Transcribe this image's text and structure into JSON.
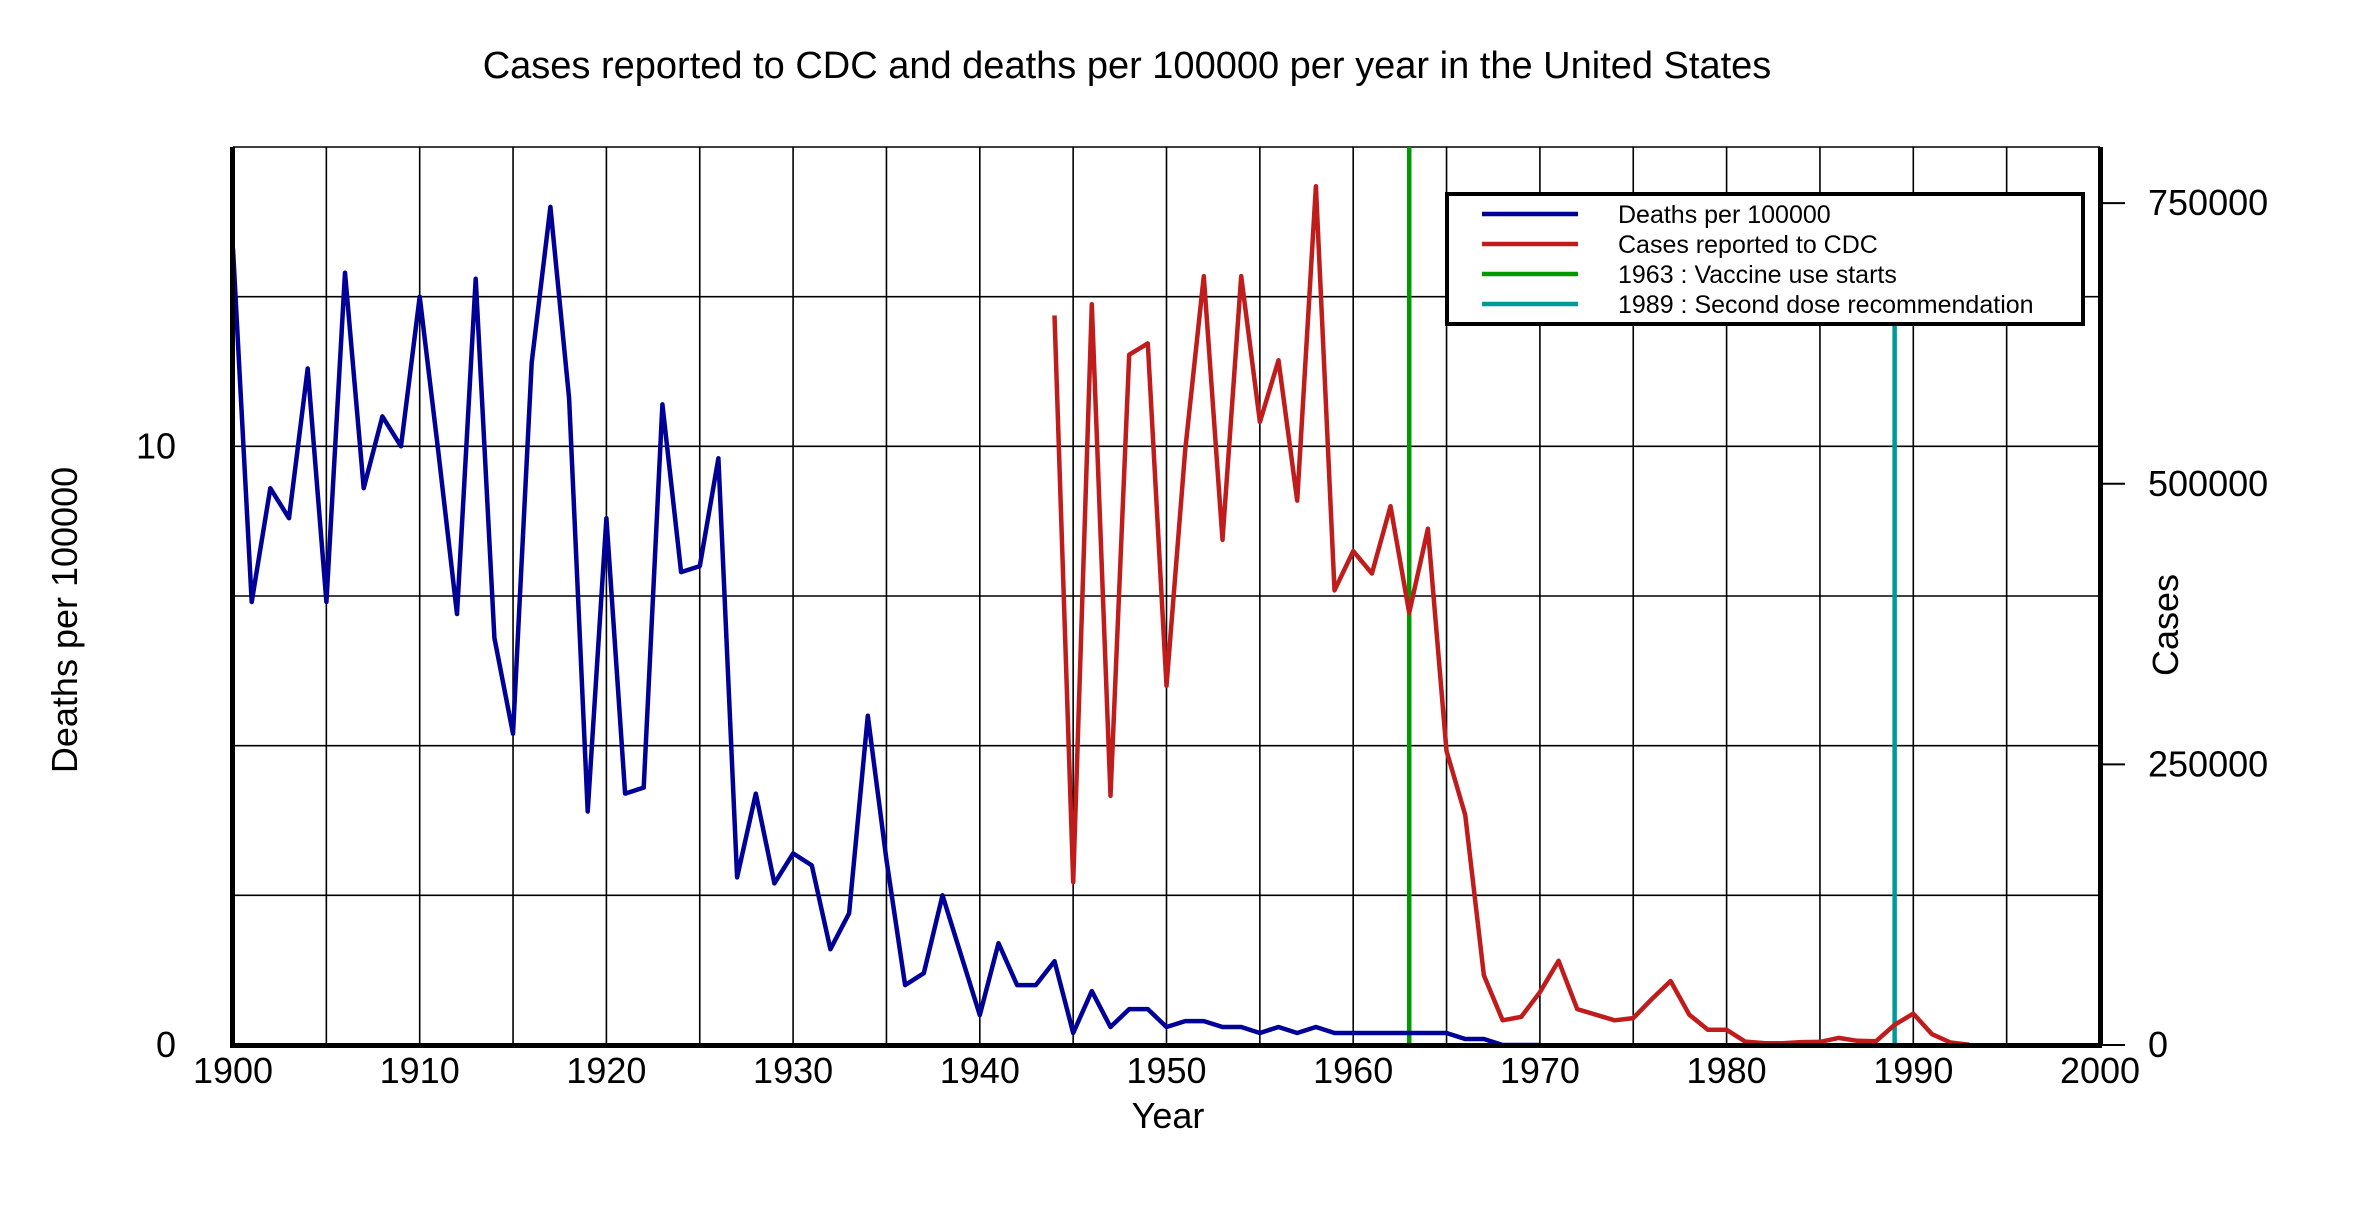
{
  "chart_data": {
    "type": "line",
    "title": "Cases reported to CDC and deaths per 100000 per year in the United States",
    "xlabel": "Year",
    "ylabel_left": "Deaths per 100000",
    "ylabel_right": "Cases",
    "xlim": [
      1900,
      2000
    ],
    "ylim_left": [
      0,
      15
    ],
    "ylim_right": [
      0,
      800000
    ],
    "x_ticks": [
      "1900",
      "1910",
      "1920",
      "1930",
      "1940",
      "1950",
      "1960",
      "1970",
      "1980",
      "1990",
      "2000"
    ],
    "y_ticks_left": [
      {
        "value": 0,
        "label": "0"
      },
      {
        "value": 10,
        "label": "10"
      }
    ],
    "y_ticks_right": [
      {
        "value": 0,
        "label": "0"
      },
      {
        "value": 250000,
        "label": "250000"
      },
      {
        "value": 500000,
        "label": "500000"
      },
      {
        "value": 750000,
        "label": "750000"
      }
    ],
    "grid": true,
    "legend_position": "top-right",
    "series": [
      {
        "name": "Deaths per 100000",
        "axis": "left",
        "color": "#000099",
        "x": [
          1900,
          1901,
          1902,
          1903,
          1904,
          1905,
          1906,
          1907,
          1908,
          1909,
          1910,
          1911,
          1912,
          1913,
          1914,
          1915,
          1916,
          1917,
          1918,
          1919,
          1920,
          1921,
          1922,
          1923,
          1924,
          1925,
          1926,
          1927,
          1928,
          1929,
          1930,
          1931,
          1932,
          1933,
          1934,
          1935,
          1936,
          1937,
          1938,
          1939,
          1940,
          1941,
          1942,
          1943,
          1944,
          1945,
          1946,
          1947,
          1948,
          1949,
          1950,
          1951,
          1952,
          1953,
          1954,
          1955,
          1956,
          1957,
          1958,
          1959,
          1960,
          1961,
          1962,
          1963,
          1964,
          1965,
          1966,
          1967,
          1968,
          1969,
          1970
        ],
        "values": [
          13.3,
          7.4,
          9.3,
          8.8,
          11.3,
          7.4,
          12.9,
          9.3,
          10.5,
          10.0,
          12.5,
          9.9,
          7.2,
          12.8,
          6.8,
          5.2,
          11.4,
          14.0,
          10.8,
          3.9,
          8.8,
          4.2,
          4.3,
          10.7,
          7.9,
          8.0,
          9.8,
          2.8,
          4.2,
          2.7,
          3.2,
          3.0,
          1.6,
          2.2,
          5.5,
          3.1,
          1.0,
          1.2,
          2.5,
          1.5,
          0.5,
          1.7,
          1.0,
          1.0,
          1.4,
          0.2,
          0.9,
          0.3,
          0.6,
          0.6,
          0.3,
          0.4,
          0.4,
          0.3,
          0.3,
          0.2,
          0.3,
          0.2,
          0.3,
          0.2,
          0.2,
          0.2,
          0.2,
          0.2,
          0.2,
          0.2,
          0.1,
          0.1,
          0.0,
          0.0,
          0.0
        ]
      },
      {
        "name": "Cases reported to CDC",
        "axis": "right",
        "color": "#c01c1c",
        "x": [
          1944,
          1945,
          1946,
          1947,
          1948,
          1949,
          1950,
          1951,
          1952,
          1953,
          1954,
          1955,
          1956,
          1957,
          1958,
          1959,
          1960,
          1961,
          1962,
          1963,
          1964,
          1965,
          1966,
          1967,
          1968,
          1969,
          1970,
          1971,
          1972,
          1973,
          1974,
          1975,
          1976,
          1977,
          1978,
          1979,
          1980,
          1981,
          1982,
          1983,
          1984,
          1985,
          1986,
          1987,
          1988,
          1989,
          1990,
          1991,
          1992,
          1993
        ],
        "values": [
          650000,
          145000,
          660000,
          222000,
          615000,
          625000,
          320000,
          530000,
          685000,
          450000,
          685000,
          555000,
          610000,
          485000,
          765000,
          405000,
          440000,
          420000,
          480000,
          385000,
          460000,
          262000,
          205000,
          62000,
          22000,
          25000,
          47000,
          75000,
          32000,
          27000,
          22000,
          24000,
          41000,
          57000,
          27000,
          13600,
          13500,
          3000,
          1700,
          1500,
          2600,
          2800,
          6300,
          3700,
          3400,
          18000,
          28000,
          9600,
          2200,
          300
        ]
      }
    ],
    "reference_lines": [
      {
        "name": "1963 : Vaccine use starts",
        "x": 1963,
        "color": "#009900",
        "y_top_right": 800000
      },
      {
        "name": "1989 : Second dose recommendation",
        "x": 1989,
        "color": "#009999",
        "y_top_right": 650000
      }
    ]
  }
}
